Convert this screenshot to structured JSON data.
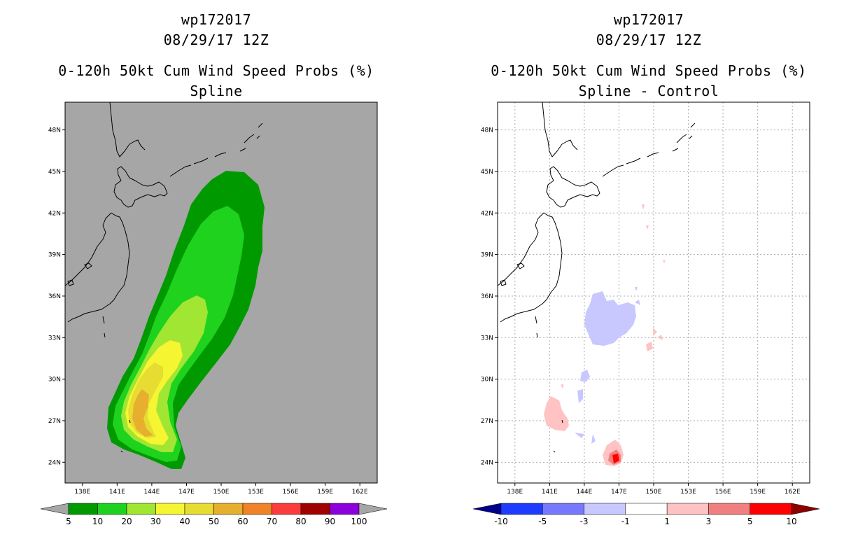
{
  "chart_data": [
    {
      "type": "heatmap",
      "storm_id": "wp172017",
      "datetime": "08/29/17 12Z",
      "title": "0-120h 50kt Cum Wind Speed Probs (%)",
      "subtitle": "Spline",
      "x_ticks": [
        "138E",
        "141E",
        "144E",
        "147E",
        "150E",
        "153E",
        "156E",
        "159E",
        "162E"
      ],
      "y_ticks": [
        "48N",
        "45N",
        "42N",
        "39N",
        "36N",
        "33N",
        "30N",
        "27N",
        "24N"
      ],
      "xlim": [
        136.5,
        163.5
      ],
      "ylim": [
        22.5,
        50
      ],
      "grid": false,
      "background": "#a6a6a6",
      "colorbar": {
        "levels": [
          "5",
          "10",
          "20",
          "30",
          "40",
          "50",
          "60",
          "70",
          "80",
          "90",
          "100"
        ],
        "colors": [
          "#009a00",
          "#1ed21e",
          "#a1e632",
          "#f5f532",
          "#e6dc32",
          "#e6af2d",
          "#f08228",
          "#fa3c3c",
          "#a00000",
          "#8c00dc"
        ],
        "under_color": "#a6a6a6",
        "over_color": "#a6a6a6"
      }
    },
    {
      "type": "heatmap",
      "storm_id": "wp172017",
      "datetime": "08/29/17 12Z",
      "title": "0-120h 50kt Cum Wind Speed Probs (%)",
      "subtitle": "Spline - Control",
      "x_ticks": [
        "138E",
        "141E",
        "144E",
        "147E",
        "150E",
        "153E",
        "156E",
        "159E",
        "162E"
      ],
      "y_ticks": [
        "48N",
        "45N",
        "42N",
        "39N",
        "36N",
        "33N",
        "30N",
        "27N",
        "24N"
      ],
      "xlim": [
        136.5,
        163.5
      ],
      "ylim": [
        22.5,
        50
      ],
      "grid": true,
      "background": "#ffffff",
      "colorbar": {
        "levels": [
          "-10",
          "-5",
          "-3",
          "-1",
          "1",
          "3",
          "5",
          "10"
        ],
        "colors": [
          "#1e3cff",
          "#7878ff",
          "#c8c8ff",
          "#ffffff",
          "#ffc3c3",
          "#f08080",
          "#ff0000"
        ],
        "under_color": "#00008c",
        "over_color": "#8c0000"
      }
    }
  ]
}
